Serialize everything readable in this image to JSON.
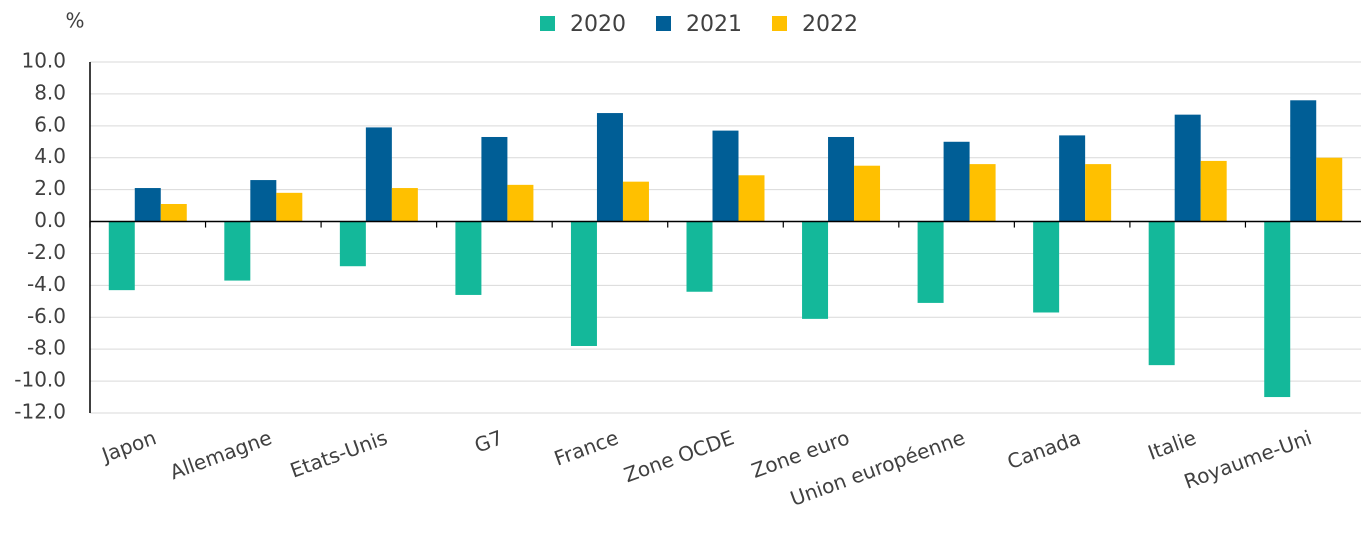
{
  "chart_data": {
    "type": "bar",
    "y_label": "%",
    "categories": [
      "Japon",
      "Allemagne",
      "Etats-Unis",
      "G7",
      "France",
      "Zone OCDE",
      "Zone euro",
      "Union européenne",
      "Canada",
      "Italie",
      "Royaume-Uni"
    ],
    "series": [
      {
        "name": "2020",
        "color": "#14b89a",
        "values": [
          -4.3,
          -3.7,
          -2.8,
          -4.6,
          -7.8,
          -4.4,
          -6.1,
          -5.1,
          -5.7,
          -9.0,
          -11.0
        ]
      },
      {
        "name": "2021",
        "color": "#005e96",
        "values": [
          2.1,
          2.6,
          5.9,
          5.3,
          6.8,
          5.7,
          5.3,
          5.0,
          5.4,
          6.7,
          7.6
        ]
      },
      {
        "name": "2022",
        "color": "#ffc000",
        "values": [
          1.1,
          1.8,
          2.1,
          2.3,
          2.5,
          2.9,
          3.5,
          3.6,
          3.6,
          3.8,
          4.0
        ]
      }
    ],
    "ylim": [
      -12,
      10
    ],
    "yticks": [
      {
        "value": 10,
        "label": "10.0"
      },
      {
        "value": 8,
        "label": "8.0"
      },
      {
        "value": 6,
        "label": "6.0"
      },
      {
        "value": 4,
        "label": "4.0"
      },
      {
        "value": 2,
        "label": "2.0"
      },
      {
        "value": 0,
        "label": "0.0"
      },
      {
        "value": -2,
        "label": "-2.0"
      },
      {
        "value": -4,
        "label": "-4.0"
      },
      {
        "value": -6,
        "label": "-6.0"
      },
      {
        "value": -8,
        "label": "-8.0"
      },
      {
        "value": -10,
        "label": "-10.0"
      },
      {
        "value": -12,
        "label": "-12.0"
      }
    ],
    "grid": true,
    "legend": "top"
  }
}
